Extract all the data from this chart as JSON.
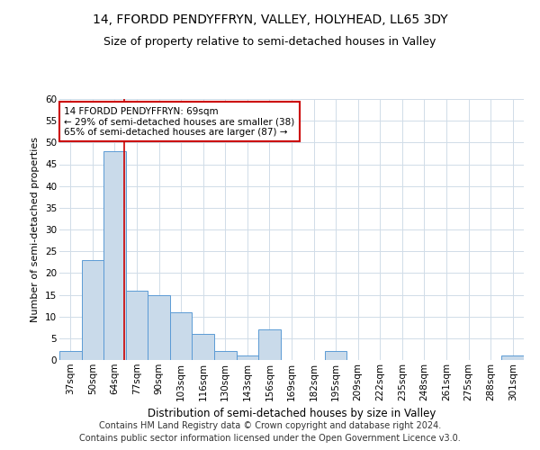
{
  "title1": "14, FFORDD PENDYFFRYN, VALLEY, HOLYHEAD, LL65 3DY",
  "title2": "Size of property relative to semi-detached houses in Valley",
  "xlabel": "Distribution of semi-detached houses by size in Valley",
  "ylabel": "Number of semi-detached properties",
  "categories": [
    "37sqm",
    "50sqm",
    "64sqm",
    "77sqm",
    "90sqm",
    "103sqm",
    "116sqm",
    "130sqm",
    "143sqm",
    "156sqm",
    "169sqm",
    "182sqm",
    "195sqm",
    "209sqm",
    "222sqm",
    "235sqm",
    "248sqm",
    "261sqm",
    "275sqm",
    "288sqm",
    "301sqm"
  ],
  "values": [
    2,
    23,
    48,
    16,
    15,
    11,
    6,
    2,
    1,
    7,
    0,
    0,
    2,
    0,
    0,
    0,
    0,
    0,
    0,
    0,
    1
  ],
  "bar_color": "#c9daea",
  "bar_edge_color": "#5b9bd5",
  "bar_width": 1.0,
  "ylim": [
    0,
    60
  ],
  "yticks": [
    0,
    5,
    10,
    15,
    20,
    25,
    30,
    35,
    40,
    45,
    50,
    55,
    60
  ],
  "vline_color": "#cc0000",
  "vline_x": 2.45,
  "annotation_text": "14 FFORDD PENDYFFRYN: 69sqm\n← 29% of semi-detached houses are smaller (38)\n65% of semi-detached houses are larger (87) →",
  "annotation_box_color": "#ffffff",
  "annotation_box_edge_color": "#cc0000",
  "footer1": "Contains HM Land Registry data © Crown copyright and database right 2024.",
  "footer2": "Contains public sector information licensed under the Open Government Licence v3.0.",
  "bg_color": "#ffffff",
  "grid_color": "#d0dce8",
  "title1_fontsize": 10,
  "title2_fontsize": 9,
  "xlabel_fontsize": 8.5,
  "ylabel_fontsize": 8,
  "tick_fontsize": 7.5,
  "annotation_fontsize": 7.5,
  "footer_fontsize": 7
}
